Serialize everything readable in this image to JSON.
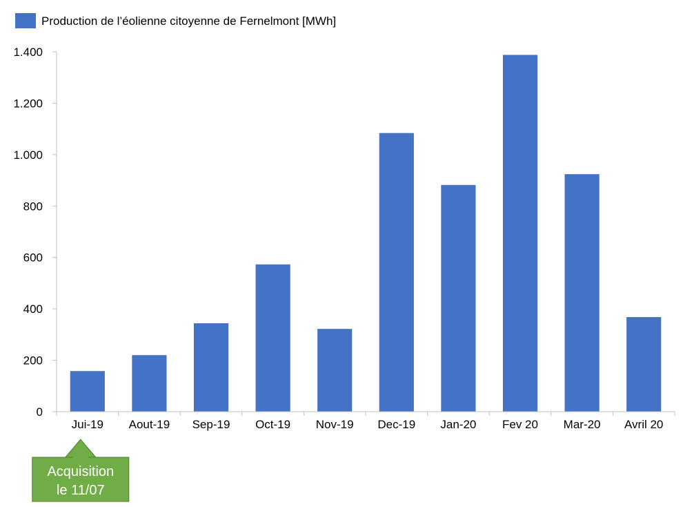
{
  "chart_data": {
    "type": "bar",
    "categories": [
      "Jui-19",
      "Aout-19",
      "Sep-19",
      "Oct-19",
      "Nov-19",
      "Dec-19",
      "Jan-20",
      "Fev 20",
      "Mar-20",
      "Avril 20"
    ],
    "series": [
      {
        "name": "Production de l’éolienne citoyenne de Fernelmont [MWh]",
        "values": [
          158,
          220,
          344,
          573,
          322,
          1084,
          882,
          1388,
          924,
          368
        ],
        "color": "#4472C4"
      }
    ],
    "title": "",
    "xlabel": "",
    "ylabel": "",
    "ylim": [
      0,
      1400
    ],
    "yticks": [
      0,
      200,
      400,
      600,
      800,
      1000,
      1200,
      1400
    ],
    "ytick_labels": [
      "0",
      "200",
      "400",
      "600",
      "800",
      "1.000",
      "1.200",
      "1.400"
    ],
    "grid": false,
    "legend_position": "top-left",
    "annotation": {
      "lines": [
        "Acquisition",
        "le 11/07"
      ],
      "target_category": "Jui-19",
      "color": "#70AD47"
    }
  }
}
